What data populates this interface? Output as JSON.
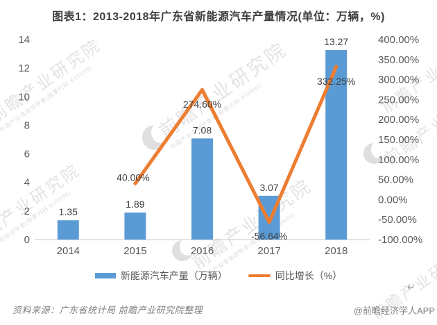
{
  "title": "图表1：2013-2018年广东省新能源汽车产量情况(单位：万辆，%)",
  "chart_data": {
    "type": "bar",
    "title": "图表1：2013-2018年广东省新能源汽车产量情况(单位：万辆，%)",
    "categories": [
      "2014",
      "2015",
      "2016",
      "2017",
      "2018"
    ],
    "series": [
      {
        "name": "新能源汽车产量（万辆）",
        "type": "bar",
        "axis": "left",
        "color": "#5B9BD5",
        "values": [
          1.35,
          1.89,
          7.08,
          3.07,
          13.27
        ],
        "labels": [
          "1.35",
          "1.89",
          "7.08",
          "3.07",
          "13.27"
        ]
      },
      {
        "name": "同比增长（%）",
        "type": "line",
        "axis": "right",
        "color": "#ED7D31",
        "values": [
          null,
          40.0,
          274.6,
          -56.64,
          332.25
        ],
        "labels": [
          null,
          "40.00%",
          "274.60%",
          "-56.64%",
          "332.25%"
        ]
      }
    ],
    "left_axis": {
      "min": 0,
      "max": 14,
      "ticks": [
        "0",
        "2",
        "4",
        "6",
        "8",
        "10",
        "12",
        "14"
      ]
    },
    "right_axis": {
      "min": -100,
      "max": 400,
      "ticks": [
        "-100.00%",
        "-50.00%",
        "0.00%",
        "50.00%",
        "100.00%",
        "150.00%",
        "200.00%",
        "250.00%",
        "300.00%",
        "350.00%",
        "400.00%"
      ]
    },
    "legend_position": "bottom",
    "grid": false
  },
  "colors": {
    "bar": "#5B9BD5",
    "line": "#ED7D31",
    "axis_text": "#595959",
    "label_text": "#404040",
    "baseline": "#C9C9C9",
    "title_text": "#3f3f3f",
    "footer_text": "#808080"
  },
  "watermark": {
    "text": "前瞻产业研究院",
    "subtext": "中国产业咨询领导者(股票代码:839599)"
  },
  "footer": {
    "source": "资料来源：广东省统计局 前瞻产业研究院整理",
    "brand": "@前瞻经济学人APP",
    "return_mark": "↵"
  }
}
